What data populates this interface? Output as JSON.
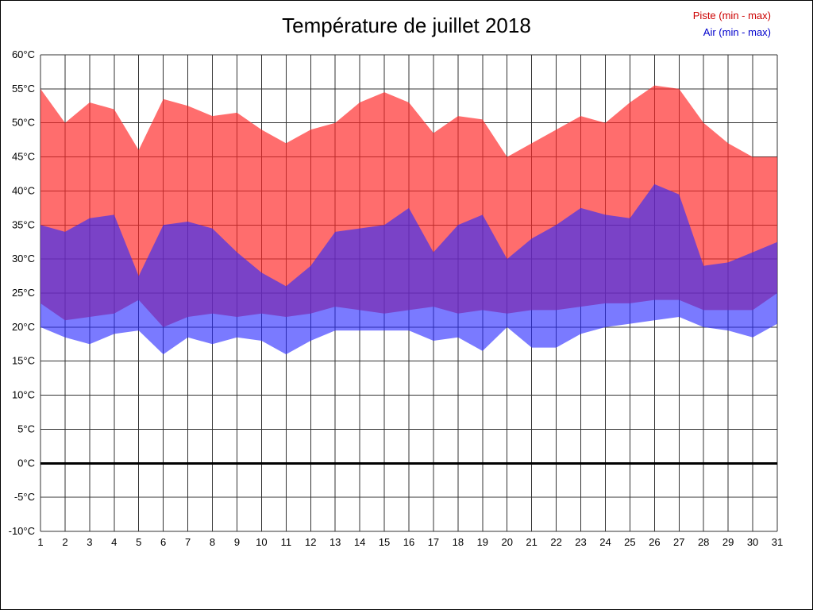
{
  "chart_data": {
    "type": "area",
    "title": "Température de juillet 2018",
    "xlabel": "",
    "ylabel": "",
    "x": [
      1,
      2,
      3,
      4,
      5,
      6,
      7,
      8,
      9,
      10,
      11,
      12,
      13,
      14,
      15,
      16,
      17,
      18,
      19,
      20,
      21,
      22,
      23,
      24,
      25,
      26,
      27,
      28,
      29,
      30,
      31
    ],
    "ylim": [
      -10,
      60
    ],
    "ytick_step": 5,
    "ytick_suffix": "°C",
    "grid": true,
    "grid_color": "#333333",
    "legend_position": "top-right",
    "zero_line": {
      "value": 0,
      "width": 3,
      "color": "#000000"
    },
    "series": [
      {
        "id": "piste",
        "name": "Piste (min - max)",
        "fill": "#ff2828",
        "fill_opacity": 0.68,
        "label_color": "#cc0000",
        "max": [
          55,
          50,
          53,
          52,
          46,
          53.5,
          52.5,
          51,
          51.5,
          49,
          47,
          49,
          50,
          53,
          54.5,
          53,
          48.5,
          51,
          50.5,
          45,
          47,
          49,
          51,
          50,
          53,
          55.5,
          55,
          50,
          47,
          45,
          45
        ],
        "min": [
          23.5,
          21,
          21.5,
          22,
          24,
          20,
          21.5,
          22,
          21.5,
          22,
          21.5,
          22,
          23,
          22.5,
          22,
          22.5,
          23,
          22,
          22.5,
          22,
          22.5,
          22.5,
          23,
          23.5,
          23.5,
          24,
          24,
          22.5,
          22.5,
          22.5,
          25
        ]
      },
      {
        "id": "air",
        "name": "Air (min - max)",
        "fill": "#2828ff",
        "fill_opacity": 0.62,
        "label_color": "#0000cc",
        "max": [
          35,
          34,
          36,
          36.5,
          27.5,
          35,
          35.5,
          34.5,
          31,
          28,
          26,
          29,
          34,
          34.5,
          35,
          37.5,
          31,
          35,
          36.5,
          30,
          33,
          35,
          37.5,
          36.5,
          36,
          41,
          39.5,
          29,
          29.5,
          31,
          32.5
        ],
        "min": [
          20,
          18.5,
          17.5,
          19,
          19.5,
          16,
          18.5,
          17.5,
          18.5,
          18,
          16,
          18,
          19.5,
          19.5,
          19.5,
          19.5,
          18,
          18.5,
          16.5,
          20,
          17,
          17,
          19,
          20,
          20.5,
          21,
          21.5,
          20,
          19.5,
          18.5,
          20.5
        ]
      }
    ]
  }
}
